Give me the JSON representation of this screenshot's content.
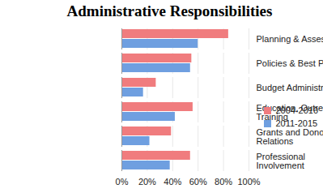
{
  "chart_data": {
    "type": "bar",
    "title": "Administrative Responsibilities",
    "orientation": "horizontal",
    "categories": [
      "Planning & Assessment",
      "Policies & Best Practices",
      "Budget Administration",
      "Education, Outreach, Training",
      "Grants and Donor Relations",
      "Professional Involvement"
    ],
    "series": [
      {
        "name": "2004-2010",
        "color": "#f07c7e",
        "values": [
          84,
          55,
          27,
          56,
          39,
          54
        ]
      },
      {
        "name": "2011-2015",
        "color": "#6f9fe0",
        "values": [
          60,
          54,
          17,
          42,
          22,
          38
        ]
      }
    ],
    "xlim": [
      0,
      100
    ],
    "xticks": [
      {
        "value": 0,
        "label": "0%"
      },
      {
        "value": 20,
        "label": "20%"
      },
      {
        "value": 40,
        "label": "40%"
      },
      {
        "value": 60,
        "label": "60%"
      },
      {
        "value": 80,
        "label": "80%"
      },
      {
        "value": 100,
        "label": "100%"
      }
    ],
    "grid": true,
    "legend": "right"
  }
}
